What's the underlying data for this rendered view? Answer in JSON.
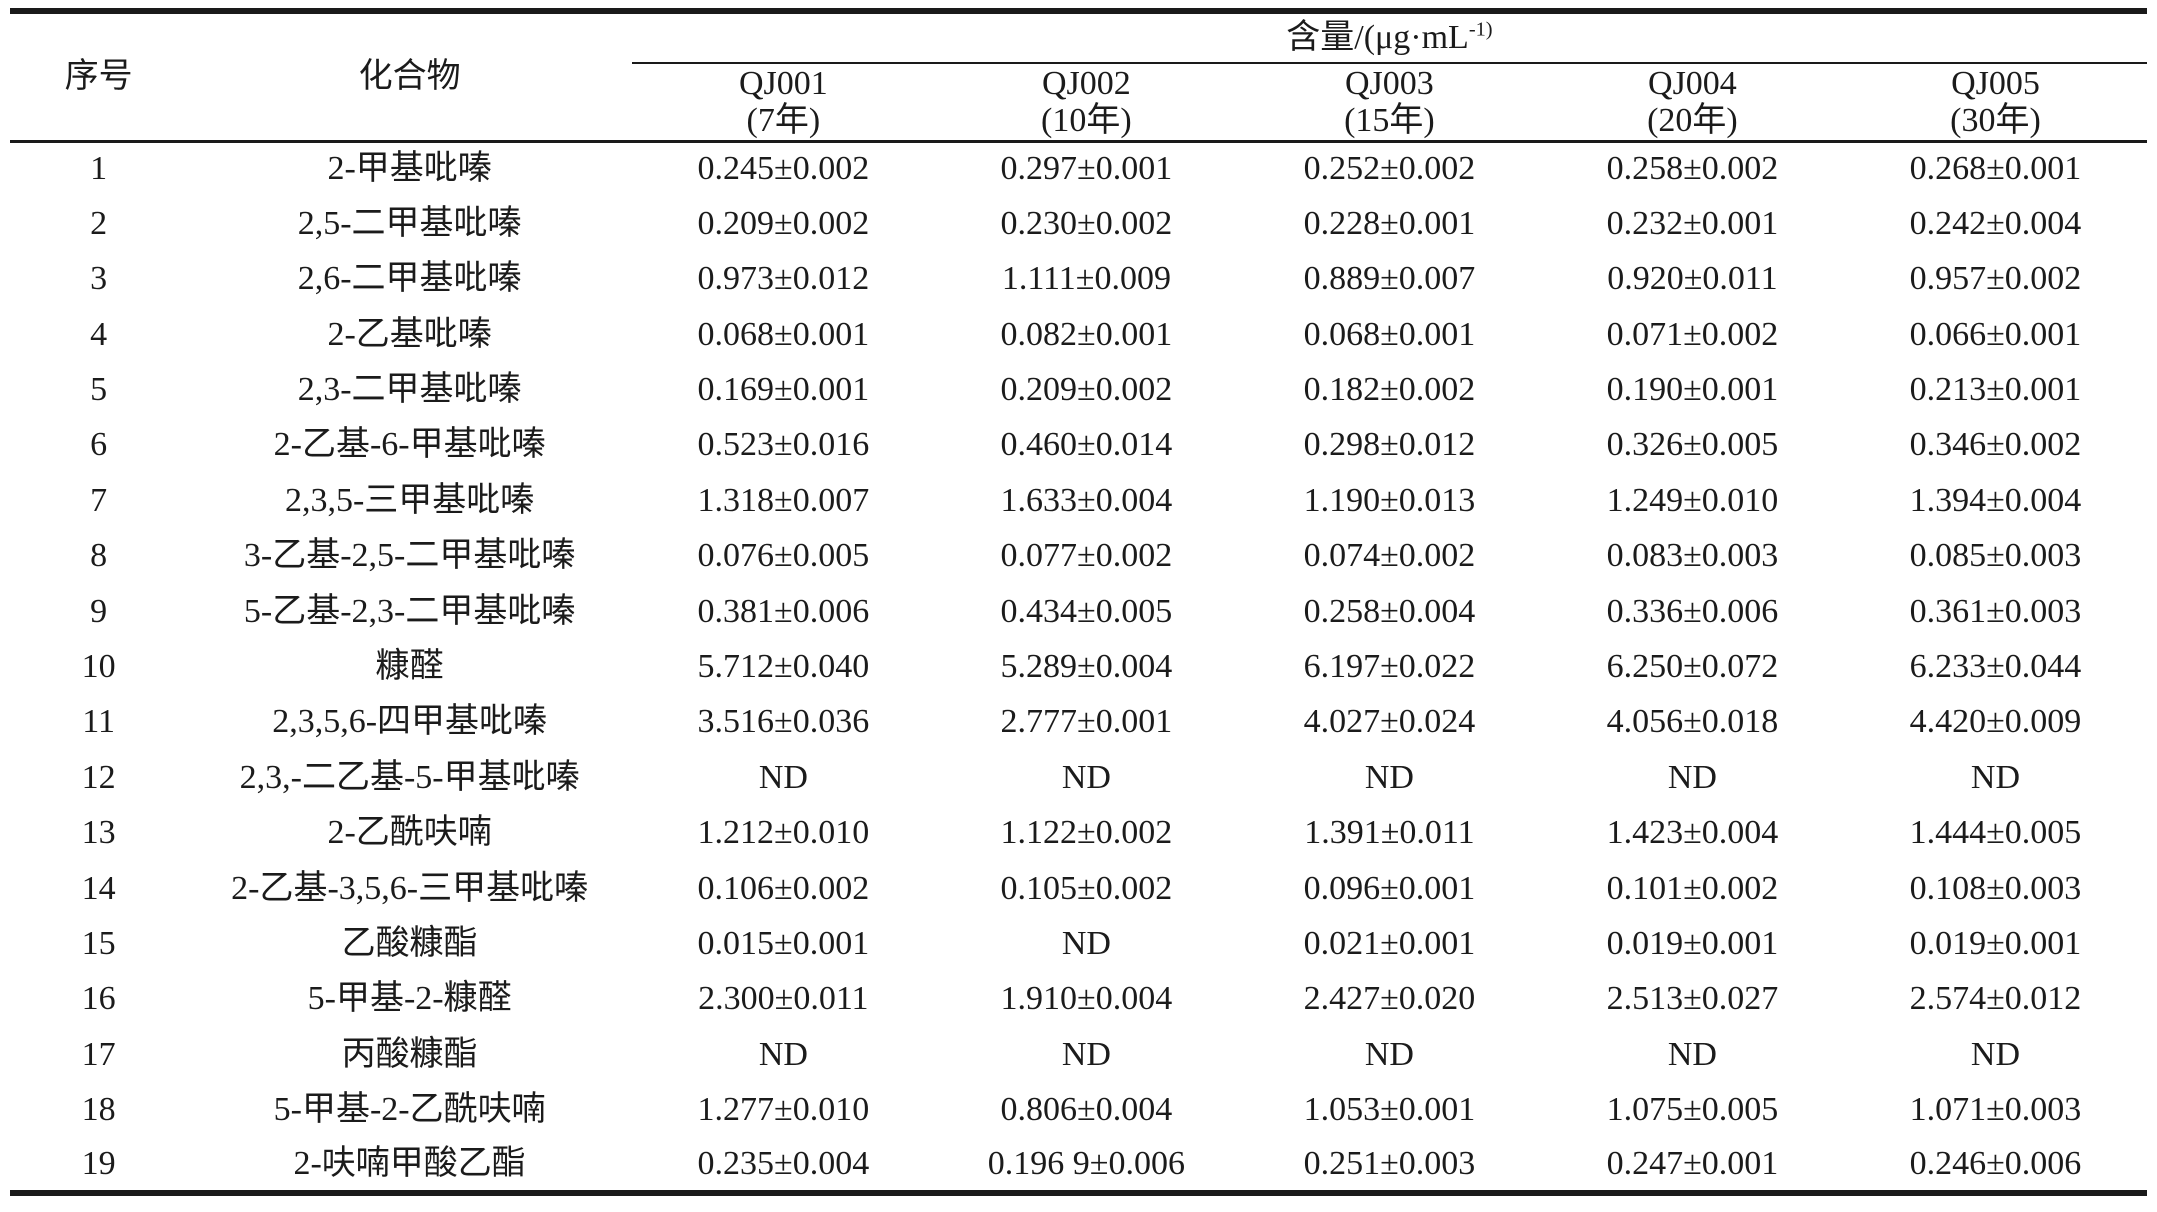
{
  "page": {
    "background": "#ffffff",
    "text_color": "#1b1b1b",
    "rule_color": "#1a1a1a"
  },
  "table": {
    "col_no_label": "序号",
    "col_compound_label": "化合物",
    "unit_main": "含量/(μg·mL",
    "unit_sup": "-1)",
    "samples": [
      {
        "name": "QJ001",
        "year": "(7年)"
      },
      {
        "name": "QJ002",
        "year": "(10年)"
      },
      {
        "name": "QJ003",
        "year": "(15年)"
      },
      {
        "name": "QJ004",
        "year": "(20年)"
      },
      {
        "name": "QJ005",
        "year": "(30年)"
      }
    ],
    "rows": [
      {
        "no": "1",
        "compound": "2-甲基吡嗪",
        "values": [
          "0.245±0.002",
          "0.297±0.001",
          "0.252±0.002",
          "0.258±0.002",
          "0.268±0.001"
        ]
      },
      {
        "no": "2",
        "compound": "2,5-二甲基吡嗪",
        "values": [
          "0.209±0.002",
          "0.230±0.002",
          "0.228±0.001",
          "0.232±0.001",
          "0.242±0.004"
        ]
      },
      {
        "no": "3",
        "compound": "2,6-二甲基吡嗪",
        "values": [
          "0.973±0.012",
          "1.111±0.009",
          "0.889±0.007",
          "0.920±0.011",
          "0.957±0.002"
        ]
      },
      {
        "no": "4",
        "compound": "2-乙基吡嗪",
        "values": [
          "0.068±0.001",
          "0.082±0.001",
          "0.068±0.001",
          "0.071±0.002",
          "0.066±0.001"
        ]
      },
      {
        "no": "5",
        "compound": "2,3-二甲基吡嗪",
        "values": [
          "0.169±0.001",
          "0.209±0.002",
          "0.182±0.002",
          "0.190±0.001",
          "0.213±0.001"
        ]
      },
      {
        "no": "6",
        "compound": "2-乙基-6-甲基吡嗪",
        "values": [
          "0.523±0.016",
          "0.460±0.014",
          "0.298±0.012",
          "0.326±0.005",
          "0.346±0.002"
        ]
      },
      {
        "no": "7",
        "compound": "2,3,5-三甲基吡嗪",
        "values": [
          "1.318±0.007",
          "1.633±0.004",
          "1.190±0.013",
          "1.249±0.010",
          "1.394±0.004"
        ]
      },
      {
        "no": "8",
        "compound": "3-乙基-2,5-二甲基吡嗪",
        "values": [
          "0.076±0.005",
          "0.077±0.002",
          "0.074±0.002",
          "0.083±0.003",
          "0.085±0.003"
        ]
      },
      {
        "no": "9",
        "compound": "5-乙基-2,3-二甲基吡嗪",
        "values": [
          "0.381±0.006",
          "0.434±0.005",
          "0.258±0.004",
          "0.336±0.006",
          "0.361±0.003"
        ]
      },
      {
        "no": "10",
        "compound": "糠醛",
        "values": [
          "5.712±0.040",
          "5.289±0.004",
          "6.197±0.022",
          "6.250±0.072",
          "6.233±0.044"
        ]
      },
      {
        "no": "11",
        "compound": "2,3,5,6-四甲基吡嗪",
        "values": [
          "3.516±0.036",
          "2.777±0.001",
          "4.027±0.024",
          "4.056±0.018",
          "4.420±0.009"
        ]
      },
      {
        "no": "12",
        "compound": "2,3,-二乙基-5-甲基吡嗪",
        "values": [
          "ND",
          "ND",
          "ND",
          "ND",
          "ND"
        ]
      },
      {
        "no": "13",
        "compound": "2-乙酰呋喃",
        "values": [
          "1.212±0.010",
          "1.122±0.002",
          "1.391±0.011",
          "1.423±0.004",
          "1.444±0.005"
        ]
      },
      {
        "no": "14",
        "compound": "2-乙基-3,5,6-三甲基吡嗪",
        "values": [
          "0.106±0.002",
          "0.105±0.002",
          "0.096±0.001",
          "0.101±0.002",
          "0.108±0.003"
        ]
      },
      {
        "no": "15",
        "compound": "乙酸糠酯",
        "values": [
          "0.015±0.001",
          "ND",
          "0.021±0.001",
          "0.019±0.001",
          "0.019±0.001"
        ]
      },
      {
        "no": "16",
        "compound": "5-甲基-2-糠醛",
        "values": [
          "2.300±0.011",
          "1.910±0.004",
          "2.427±0.020",
          "2.513±0.027",
          "2.574±0.012"
        ]
      },
      {
        "no": "17",
        "compound": "丙酸糠酯",
        "values": [
          "ND",
          "ND",
          "ND",
          "ND",
          "ND"
        ]
      },
      {
        "no": "18",
        "compound": "5-甲基-2-乙酰呋喃",
        "values": [
          "1.277±0.010",
          "0.806±0.004",
          "1.053±0.001",
          "1.075±0.005",
          "1.071±0.003"
        ]
      },
      {
        "no": "19",
        "compound": "2-呋喃甲酸乙酯",
        "values": [
          "0.235±0.004",
          "0.196 9±0.006",
          "0.251±0.003",
          "0.247±0.001",
          "0.246±0.006"
        ]
      }
    ]
  }
}
